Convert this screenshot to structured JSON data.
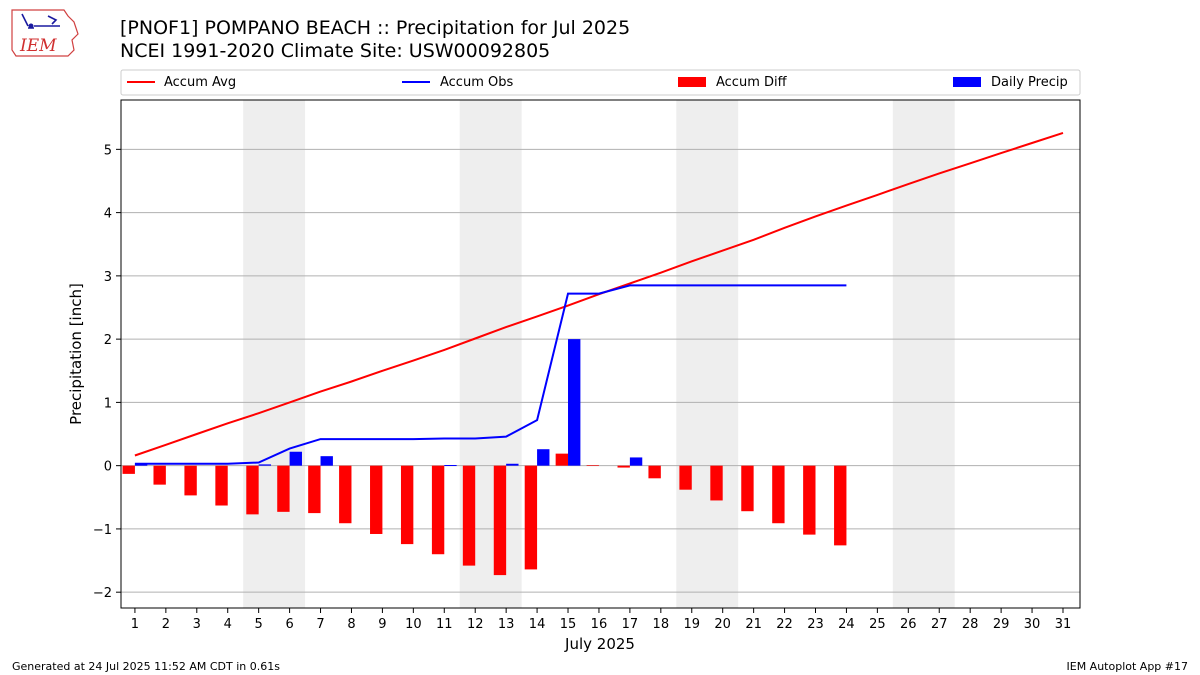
{
  "header": {
    "title": "[PNOF1] POMPANO BEACH :: Precipitation for Jul 2025",
    "subtitle": "NCEI 1991-2020 Climate Site: USW00092805",
    "logo_text": "IEM"
  },
  "footer": {
    "left": "Generated at 24 Jul 2025 11:52 AM CDT in 0.61s",
    "right": "IEM Autoplot App #17"
  },
  "chart_data": {
    "type": "bar",
    "title": "[PNOF1] POMPANO BEACH :: Precipitation for Jul 2025",
    "subtitle": "NCEI 1991-2020 Climate Site: USW00092805",
    "xlabel": "July 2025",
    "ylabel": "Precipitation [inch]",
    "ylim": [
      -2.25,
      5.78
    ],
    "xlim": [
      0.55,
      31.55
    ],
    "yticks": [
      -2,
      -1,
      0,
      1,
      2,
      3,
      4,
      5
    ],
    "ytick_labels": [
      "−2",
      "−1",
      "0",
      "1",
      "2",
      "3",
      "4",
      "5"
    ],
    "xticks": [
      1,
      2,
      3,
      4,
      5,
      6,
      7,
      8,
      9,
      10,
      11,
      12,
      13,
      14,
      15,
      16,
      17,
      18,
      19,
      20,
      21,
      22,
      23,
      24,
      25,
      26,
      27,
      28,
      29,
      30,
      31
    ],
    "weekend_shading": [
      [
        4.5,
        6.5
      ],
      [
        11.5,
        13.5
      ],
      [
        18.5,
        20.5
      ],
      [
        25.5,
        27.5
      ]
    ],
    "grid": "horizontal",
    "legend_position": "top",
    "colors": {
      "accum_avg": "#ff0000",
      "accum_obs": "#0000ff",
      "accum_diff": "#ff0000",
      "daily_precip": "#0000ff",
      "shade": "#eeeeee",
      "grid": "#b0b0b0"
    },
    "legend": [
      "Accum Avg",
      "Accum Obs",
      "Accum Diff",
      "Daily Precip"
    ],
    "series": [
      {
        "name": "Accum Avg",
        "type": "line",
        "x": [
          1,
          2,
          3,
          4,
          5,
          6,
          7,
          8,
          9,
          10,
          11,
          12,
          13,
          14,
          15,
          16,
          17,
          18,
          19,
          20,
          21,
          22,
          23,
          24,
          25,
          26,
          27,
          28,
          29,
          30,
          31
        ],
        "values": [
          0.16,
          0.33,
          0.5,
          0.67,
          0.83,
          1.0,
          1.17,
          1.33,
          1.5,
          1.66,
          1.83,
          2.01,
          2.19,
          2.36,
          2.53,
          2.71,
          2.88,
          3.05,
          3.23,
          3.4,
          3.57,
          3.76,
          3.94,
          4.11,
          4.28,
          4.45,
          4.62,
          4.78,
          4.94,
          5.1,
          5.26
        ]
      },
      {
        "name": "Accum Obs",
        "type": "line",
        "x": [
          1,
          2,
          3,
          4,
          5,
          6,
          7,
          8,
          9,
          10,
          11,
          12,
          13,
          14,
          15,
          16,
          17,
          18,
          19,
          20,
          21,
          22,
          23,
          24
        ],
        "values": [
          0.03,
          0.03,
          0.03,
          0.03,
          0.05,
          0.27,
          0.42,
          0.42,
          0.42,
          0.42,
          0.43,
          0.43,
          0.46,
          0.72,
          2.72,
          2.72,
          2.85,
          2.85,
          2.85,
          2.85,
          2.85,
          2.85,
          2.85,
          2.85
        ]
      },
      {
        "name": "Accum Diff",
        "type": "bar",
        "x": [
          1,
          2,
          3,
          4,
          5,
          6,
          7,
          8,
          9,
          10,
          11,
          12,
          13,
          14,
          15,
          16,
          17,
          18,
          19,
          20,
          21,
          22,
          23,
          24
        ],
        "values": [
          -0.13,
          -0.3,
          -0.47,
          -0.63,
          -0.77,
          -0.73,
          -0.75,
          -0.91,
          -1.08,
          -1.24,
          -1.4,
          -1.58,
          -1.73,
          -1.64,
          0.19,
          0.01,
          -0.03,
          -0.2,
          -0.38,
          -0.55,
          -0.72,
          -0.91,
          -1.09,
          -1.26
        ]
      },
      {
        "name": "Daily Precip",
        "type": "bar",
        "x": [
          1,
          2,
          3,
          4,
          5,
          6,
          7,
          8,
          9,
          10,
          11,
          12,
          13,
          14,
          15,
          16,
          17,
          18,
          19,
          20,
          21,
          22,
          23,
          24
        ],
        "values": [
          0.03,
          0,
          0,
          0,
          0.02,
          0.22,
          0.15,
          0,
          0,
          0,
          0.01,
          0,
          0.03,
          0.26,
          2.0,
          0,
          0.13,
          0,
          0,
          0,
          0,
          0,
          0,
          0
        ]
      }
    ]
  }
}
